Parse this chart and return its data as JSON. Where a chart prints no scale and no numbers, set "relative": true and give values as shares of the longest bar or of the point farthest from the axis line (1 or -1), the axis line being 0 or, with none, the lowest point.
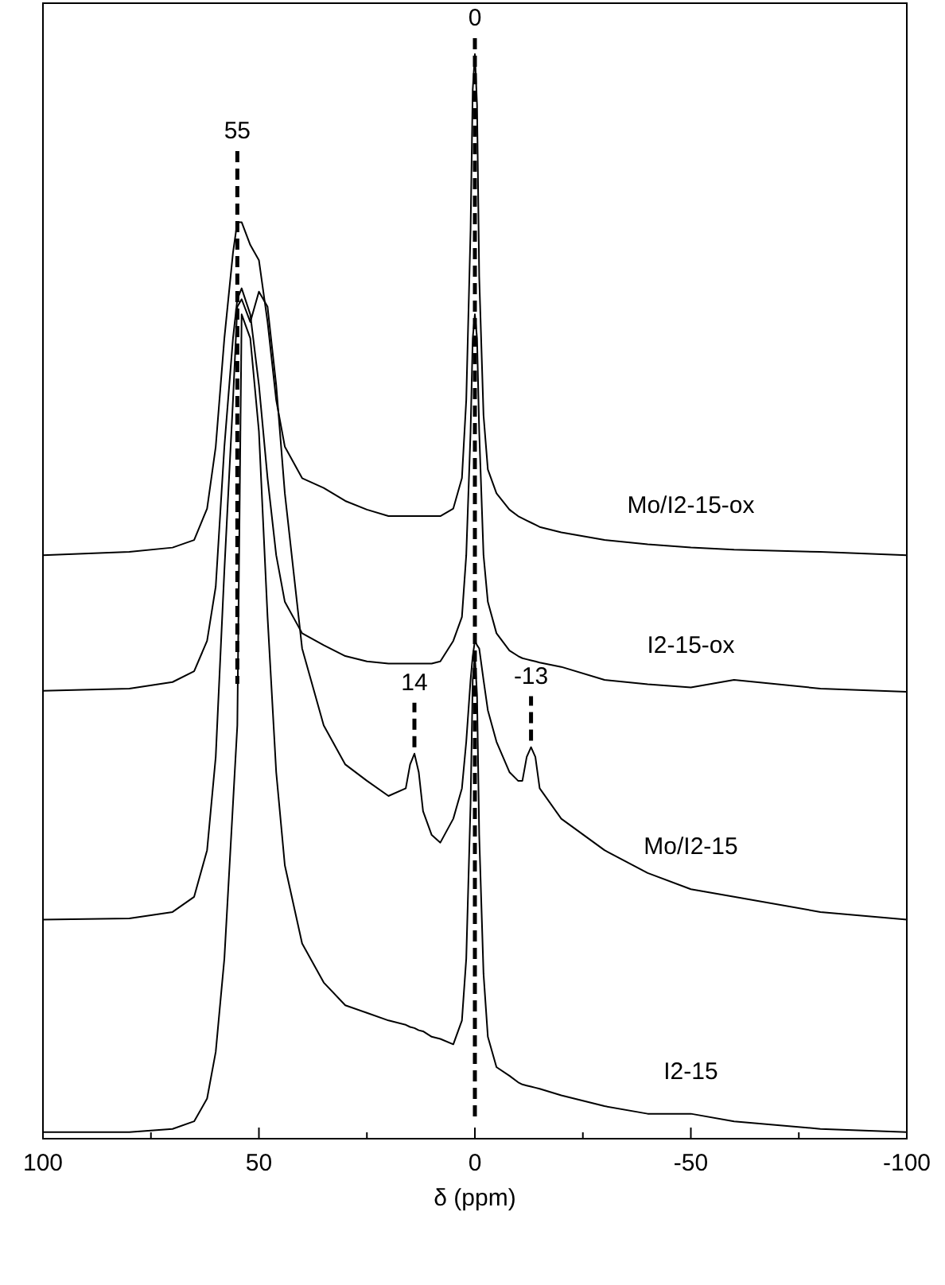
{
  "chart_data": {
    "type": "line",
    "relative": true,
    "xlabel": "δ (ppm)",
    "xlim": [
      100,
      -100
    ],
    "xticks": [
      100,
      {
        "value": 75,
        "label": null
      },
      50,
      {
        "value": 25,
        "label": null
      },
      0,
      {
        "value": -25,
        "label": null
      },
      -50,
      {
        "value": -75,
        "label": null
      },
      -100
    ],
    "x": [
      100,
      80,
      70,
      65,
      62,
      60,
      58,
      56,
      55,
      54,
      52,
      50,
      48,
      46,
      44,
      40,
      35,
      30,
      25,
      20,
      16,
      15,
      14,
      13,
      12,
      10,
      8,
      5,
      3,
      2,
      1,
      0.5,
      0,
      -0.5,
      -1,
      -2,
      -3,
      -5,
      -8,
      -10,
      -11,
      -12,
      -13,
      -14,
      -15,
      -20,
      -30,
      -40,
      -50,
      -60,
      -80,
      -100
    ],
    "series": [
      {
        "name": "Mo/I2-15-ox",
        "color": "#000000",
        "values": [
          0.538,
          0.541,
          0.545,
          0.552,
          0.581,
          0.638,
          0.738,
          0.817,
          0.845,
          0.845,
          0.824,
          0.81,
          0.753,
          0.681,
          0.638,
          0.609,
          0.6,
          0.588,
          0.58,
          0.574,
          0.574,
          0.574,
          0.574,
          0.574,
          0.574,
          0.574,
          0.574,
          0.581,
          0.609,
          0.681,
          0.838,
          0.967,
          1.0,
          0.953,
          0.795,
          0.667,
          0.617,
          0.595,
          0.58,
          0.574,
          0.572,
          0.57,
          0.568,
          0.566,
          0.564,
          0.559,
          0.552,
          0.548,
          0.545,
          0.543,
          0.541,
          0.538
        ]
      },
      {
        "name": "I2-15-ox",
        "color": "#000000",
        "values": [
          0.413,
          0.415,
          0.421,
          0.431,
          0.459,
          0.509,
          0.638,
          0.738,
          0.774,
          0.784,
          0.76,
          0.695,
          0.609,
          0.538,
          0.495,
          0.466,
          0.455,
          0.445,
          0.44,
          0.438,
          0.438,
          0.438,
          0.438,
          0.438,
          0.438,
          0.438,
          0.44,
          0.459,
          0.481,
          0.538,
          0.652,
          0.738,
          0.76,
          0.738,
          0.652,
          0.538,
          0.495,
          0.466,
          0.45,
          0.445,
          0.443,
          0.442,
          0.441,
          0.44,
          0.439,
          0.435,
          0.423,
          0.419,
          0.416,
          0.423,
          0.415,
          0.412
        ]
      },
      {
        "name": "Mo/I2-15",
        "color": "#000000",
        "values": [
          0.202,
          0.203,
          0.209,
          0.223,
          0.266,
          0.352,
          0.524,
          0.681,
          0.767,
          0.774,
          0.753,
          0.781,
          0.767,
          0.695,
          0.595,
          0.452,
          0.381,
          0.345,
          0.33,
          0.316,
          0.323,
          0.345,
          0.355,
          0.338,
          0.302,
          0.28,
          0.273,
          0.295,
          0.323,
          0.366,
          0.423,
          0.445,
          0.459,
          0.455,
          0.452,
          0.423,
          0.395,
          0.366,
          0.338,
          0.33,
          0.33,
          0.352,
          0.361,
          0.352,
          0.323,
          0.295,
          0.266,
          0.245,
          0.23,
          0.223,
          0.209,
          0.202
        ]
      },
      {
        "name": "I2-15",
        "color": "#000000",
        "values": [
          0.006,
          0.006,
          0.009,
          0.016,
          0.037,
          0.08,
          0.166,
          0.309,
          0.381,
          0.76,
          0.738,
          0.652,
          0.481,
          0.338,
          0.252,
          0.18,
          0.144,
          0.123,
          0.116,
          0.109,
          0.105,
          0.103,
          0.102,
          0.1,
          0.099,
          0.094,
          0.092,
          0.087,
          0.109,
          0.166,
          0.309,
          0.423,
          0.445,
          0.409,
          0.28,
          0.152,
          0.094,
          0.066,
          0.058,
          0.052,
          0.05,
          0.049,
          0.048,
          0.047,
          0.046,
          0.04,
          0.03,
          0.023,
          0.023,
          0.016,
          0.009,
          0.006
        ]
      }
    ],
    "ref_lines": [
      {
        "axis": "x",
        "value": 55,
        "label": "55",
        "line_style": "dashed"
      },
      {
        "axis": "x",
        "value": 0,
        "label": "0",
        "line_style": "dashed"
      }
    ],
    "annotations": [
      {
        "text": "14",
        "x": 14,
        "y": 0.355
      },
      {
        "text": "-13",
        "x": -13,
        "y": 0.361
      }
    ]
  }
}
